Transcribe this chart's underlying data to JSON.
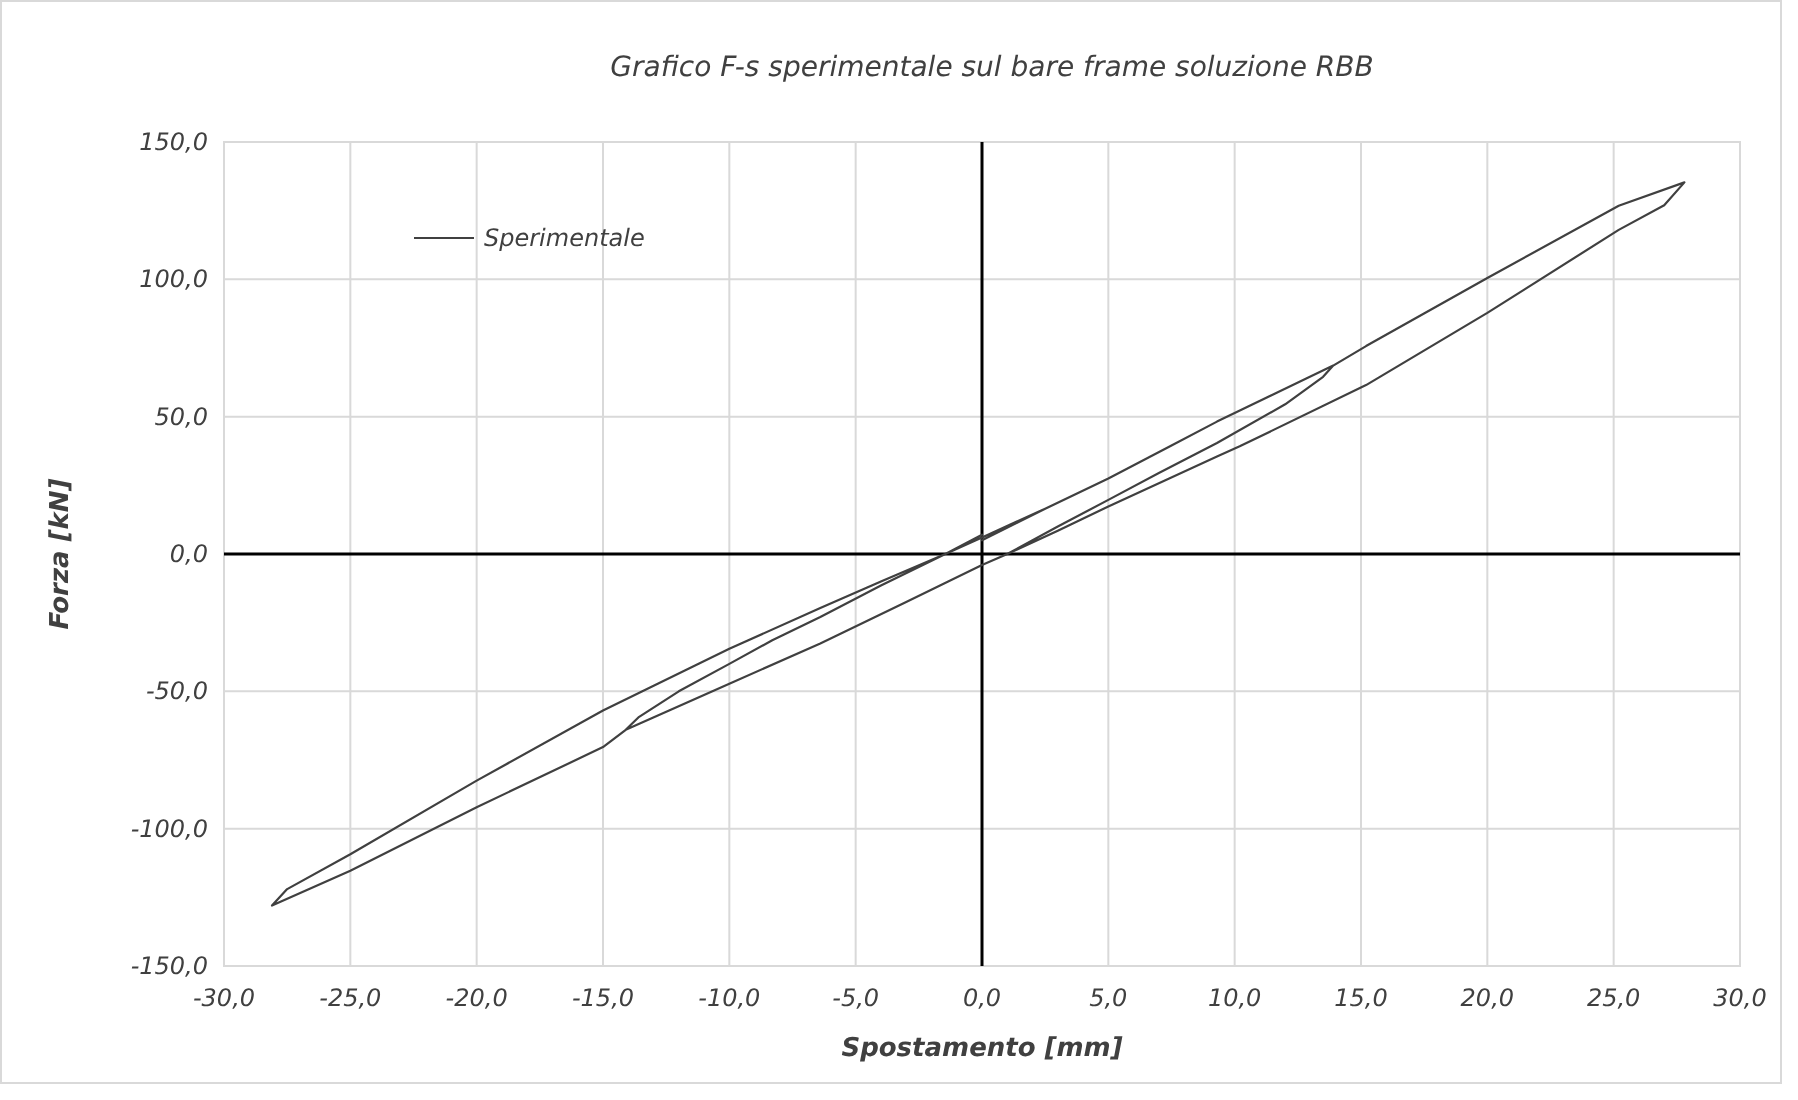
{
  "chart_data": {
    "type": "line",
    "title": "Grafico F-s sperimentale sul bare frame soluzione RBB",
    "xlabel": "Spostamento [mm]",
    "ylabel": "Forza [kN]",
    "xlim": [
      -30,
      30
    ],
    "ylim": [
      -150,
      150
    ],
    "xticks": [
      {
        "value": -30,
        "label": "-30,0"
      },
      {
        "value": -25,
        "label": "-25,0"
      },
      {
        "value": -20,
        "label": "-20,0"
      },
      {
        "value": -15,
        "label": "-15,0"
      },
      {
        "value": -10,
        "label": "-10,0"
      },
      {
        "value": -5,
        "label": "-5,0"
      },
      {
        "value": 0,
        "label": "0,0"
      },
      {
        "value": 5,
        "label": "5,0"
      },
      {
        "value": 10,
        "label": "10,0"
      },
      {
        "value": 15,
        "label": "15,0"
      },
      {
        "value": 20,
        "label": "20,0"
      },
      {
        "value": 25,
        "label": "25,0"
      },
      {
        "value": 30,
        "label": "30,0"
      }
    ],
    "yticks": [
      {
        "value": -150,
        "label": "-150,0"
      },
      {
        "value": -100,
        "label": "-100,0"
      },
      {
        "value": -50,
        "label": "-50,0"
      },
      {
        "value": 0,
        "label": "0,0"
      },
      {
        "value": 50,
        "label": "50,0"
      },
      {
        "value": 100,
        "label": "100,0"
      },
      {
        "value": 150,
        "label": "150,0"
      }
    ],
    "grid": true,
    "legend": "top left",
    "marker": "none",
    "line_style": "solid",
    "series": [
      {
        "name": "Sperimentale",
        "color": "#404040",
        "x": [
          0,
          2.5,
          5,
          7.5,
          9.3,
          11.5,
          13.9,
          13.5,
          12,
          9.3,
          7,
          5,
          3,
          1,
          0,
          -3,
          -6.4,
          -10,
          -14.1,
          -13.6,
          -12,
          -10,
          -8.3,
          -6.4,
          -4,
          -1.45,
          0,
          2.5,
          5,
          7.5,
          9.3,
          11.5,
          13.9,
          15.2,
          20,
          25.2,
          27.8,
          27,
          25.2,
          20,
          15.2,
          10.2,
          9.3,
          5,
          3,
          1,
          0,
          -3,
          -6.4,
          -10,
          -14.1,
          -15,
          -20,
          -25,
          -28.1,
          -27.5,
          -25,
          -20,
          -15,
          -10,
          -6.4,
          -4,
          -1.45,
          0
        ],
        "values": [
          5,
          16.5,
          27.5,
          39.5,
          48.2,
          58,
          68.6,
          64.5,
          54.5,
          40.4,
          29.5,
          19.7,
          10,
          0,
          -4,
          -17.5,
          -32.6,
          -47.2,
          -64,
          -59.5,
          -50,
          -40,
          -31.4,
          -22.9,
          -11.5,
          0,
          6,
          16.5,
          27.5,
          39.5,
          48.2,
          58,
          68.6,
          75.7,
          100.5,
          126.8,
          135.3,
          127,
          118,
          87.8,
          61.5,
          39.2,
          35.5,
          17.3,
          8.5,
          0,
          -4,
          -17.5,
          -32.6,
          -47.2,
          -64,
          -70.3,
          -92.2,
          -115.3,
          -128,
          -122,
          -109.3,
          -82.5,
          -57,
          -34.5,
          -19.7,
          -10,
          0,
          7
        ]
      }
    ]
  }
}
